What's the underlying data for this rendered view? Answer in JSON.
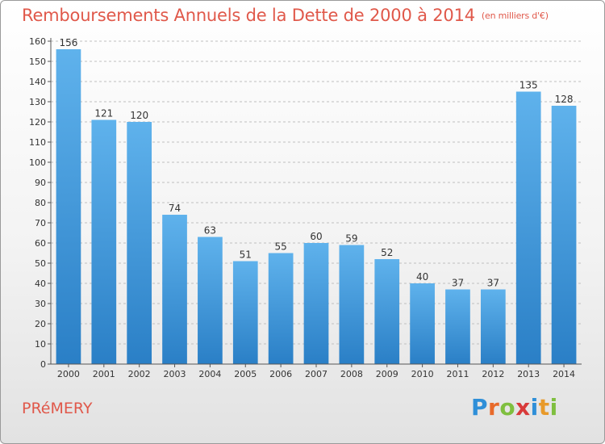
{
  "page": {
    "commune": "PRéMERY",
    "brand_letters": [
      "P",
      "r",
      "o",
      "x",
      "i",
      "t",
      "i"
    ],
    "brand_colors": [
      "#2f8fd8",
      "#e86a2a",
      "#7fbf3f",
      "#d83a3a",
      "#2f8fd8",
      "#e89a2a",
      "#7fbf3f"
    ]
  },
  "colors": {
    "title": "#e0584a",
    "bar_top": "#5fb2ec",
    "bar_bottom": "#2a7fc6",
    "grid": "#bfbfbf",
    "axis": "#555555"
  },
  "chart_data": {
    "type": "bar",
    "title": "Remboursements Annuels de la Dette de 2000 à 2014",
    "subtitle": "(en milliers d'€)",
    "xlabel": "",
    "ylabel": "",
    "ylim": [
      0,
      160
    ],
    "ytick_step": 10,
    "grid": true,
    "categories": [
      "2000",
      "2001",
      "2002",
      "2003",
      "2004",
      "2005",
      "2006",
      "2007",
      "2008",
      "2009",
      "2010",
      "2011",
      "2012",
      "2013",
      "2014"
    ],
    "values": [
      156,
      121,
      120,
      74,
      63,
      51,
      55,
      60,
      59,
      52,
      40,
      37,
      37,
      135,
      128
    ]
  }
}
